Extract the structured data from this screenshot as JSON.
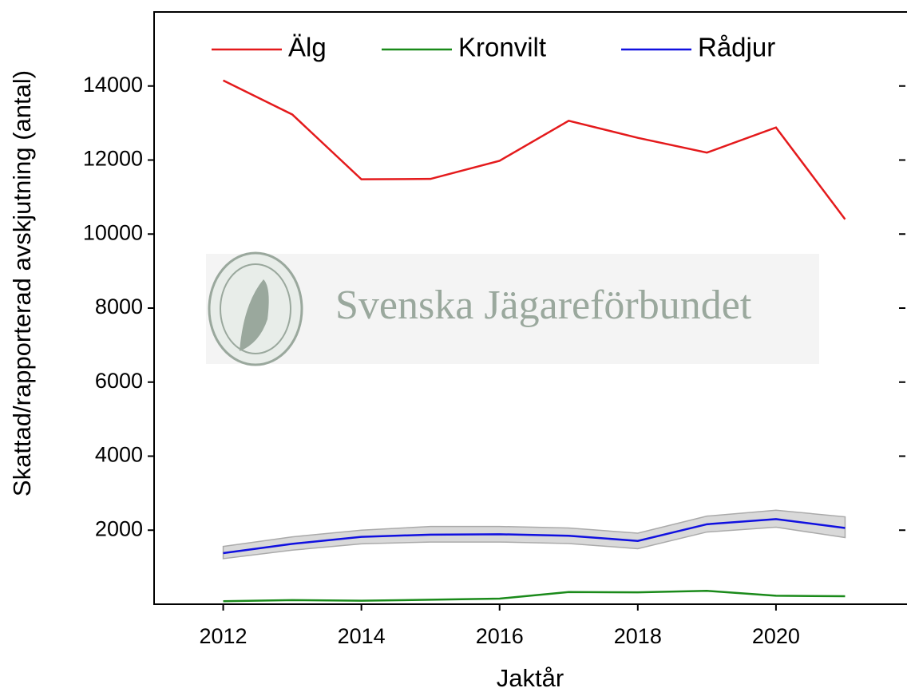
{
  "chart_data": {
    "type": "line",
    "xlabel": "Jaktår",
    "ylabel": "Skattad/rapporterad avskjutning (antal)",
    "watermark": "Svenska Jägareförbundet",
    "x": [
      2012,
      2013,
      2014,
      2015,
      2016,
      2017,
      2018,
      2019,
      2020,
      2021
    ],
    "series": [
      {
        "name": "Älg",
        "color": "#e41a1c",
        "values": [
          14150,
          13230,
          11480,
          11490,
          11980,
          13060,
          12600,
          12200,
          12880,
          10400
        ]
      },
      {
        "name": "Kronvilt",
        "color": "#1a8a1a",
        "values": [
          80,
          110,
          95,
          120,
          150,
          330,
          320,
          360,
          230,
          215
        ]
      },
      {
        "name": "Rådjur",
        "color": "#1010e0",
        "values": [
          1380,
          1630,
          1820,
          1880,
          1890,
          1850,
          1710,
          2160,
          2300,
          2060
        ],
        "band": {
          "color": "#d9d9d9",
          "lower": [
            1230,
            1460,
            1630,
            1680,
            1680,
            1640,
            1500,
            1950,
            2080,
            1800
          ],
          "upper": [
            1560,
            1820,
            2000,
            2100,
            2100,
            2060,
            1920,
            2380,
            2540,
            2360
          ]
        }
      }
    ],
    "xlim": [
      2011,
      2022
    ],
    "xticks": [
      2012,
      2014,
      2016,
      2018,
      2020
    ],
    "ylim": [
      0,
      16000
    ],
    "yticks": [
      2000,
      4000,
      6000,
      8000,
      10000,
      12000,
      14000
    ],
    "legend": "top"
  }
}
